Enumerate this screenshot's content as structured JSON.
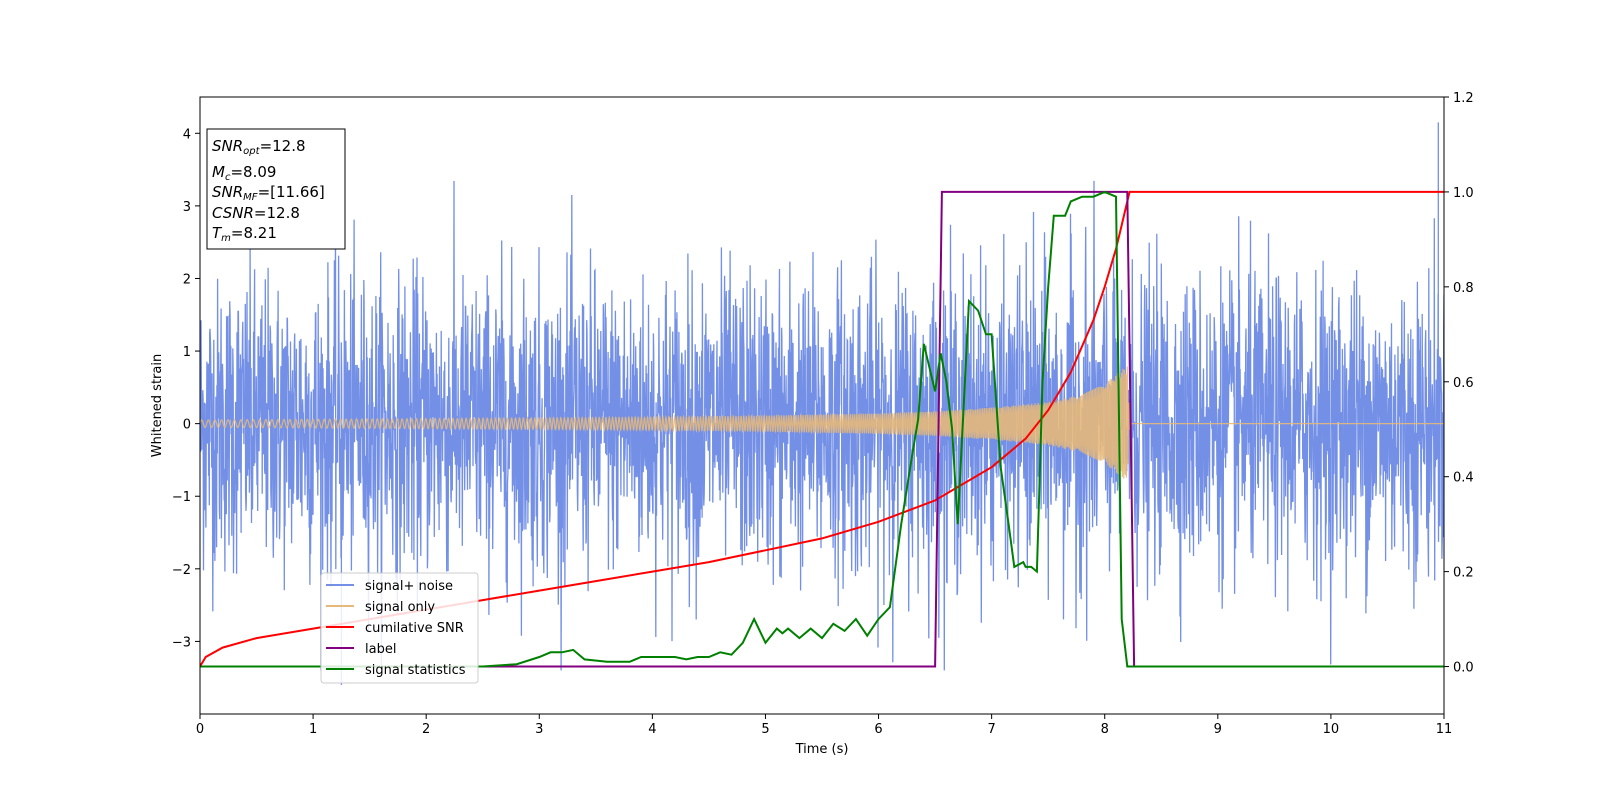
{
  "chart_data": {
    "type": "line",
    "xlabel": "Time (s)",
    "ylabel": "Whitened strain",
    "xlim": [
      0,
      11
    ],
    "ylim_left": [
      -4,
      4.5
    ],
    "ylim_right": [
      -0.1,
      1.2
    ],
    "x_ticks": [
      "0",
      "1",
      "2",
      "3",
      "4",
      "5",
      "6",
      "7",
      "8",
      "9",
      "10",
      "11"
    ],
    "y_left_ticks": [
      "4",
      "3",
      "2",
      "1",
      "0",
      "−1",
      "−2",
      "−3"
    ],
    "y_left_tick_values": [
      4,
      3,
      2,
      1,
      0,
      -1,
      -2,
      -3
    ],
    "y_right_ticks": [
      "1.2",
      "1.0",
      "0.8",
      "0.6",
      "0.4",
      "0.2",
      "0.0"
    ],
    "y_right_tick_values": [
      1.2,
      1.0,
      0.8,
      0.6,
      0.4,
      0.2,
      0.0
    ],
    "grid": false,
    "legend_position": "lower-left",
    "info_box": {
      "snr_opt": {
        "label": "SNR",
        "sub": "opt",
        "value": "=12.8"
      },
      "mc": {
        "label": "M",
        "sub": "c",
        "value": "=8.09"
      },
      "snr_mf": {
        "label": "SNR",
        "sub": "MF",
        "value": "=[11.66]"
      },
      "csnr": {
        "label": "CSNR",
        "value": "=12.8"
      },
      "tm": {
        "label": "T",
        "sub": "m",
        "value": "=8.21"
      }
    },
    "series": [
      {
        "name": "signal+ noise",
        "axis": "left",
        "color": "#7390e6",
        "description_values": {
          "noise_std": 1.0,
          "max_peak_x": 10.95,
          "max_peak_y": 4.15,
          "min_peak_x": 1.25,
          "min_peak_y": -3.6
        }
      },
      {
        "name": "signal only",
        "axis": "left",
        "color": "#e6b87a",
        "envelope": {
          "x": [
            0,
            1,
            2,
            3,
            4,
            5,
            6,
            6.5,
            7,
            7.5,
            7.8,
            8.0,
            8.1,
            8.2,
            8.22,
            11
          ],
          "amp": [
            0.05,
            0.06,
            0.07,
            0.08,
            0.09,
            0.11,
            0.14,
            0.17,
            0.22,
            0.3,
            0.4,
            0.55,
            0.68,
            0.8,
            0,
            0
          ]
        }
      },
      {
        "name": "cumilative SNR",
        "axis": "right",
        "color": "#ff0000",
        "x": [
          0,
          0.05,
          0.2,
          0.5,
          1,
          1.5,
          2,
          2.5,
          3,
          3.5,
          4,
          4.5,
          5,
          5.5,
          6,
          6.5,
          7,
          7.3,
          7.5,
          7.7,
          7.9,
          8.0,
          8.1,
          8.15,
          8.2,
          8.22,
          11
        ],
        "y": [
          0.0,
          0.02,
          0.04,
          0.06,
          0.08,
          0.1,
          0.12,
          0.14,
          0.16,
          0.18,
          0.2,
          0.22,
          0.245,
          0.27,
          0.305,
          0.35,
          0.42,
          0.48,
          0.54,
          0.62,
          0.73,
          0.8,
          0.88,
          0.93,
          0.98,
          1.0,
          1.0
        ]
      },
      {
        "name": "label",
        "axis": "right",
        "color": "#800080",
        "x": [
          0,
          6.5,
          6.56,
          8.2,
          8.26,
          11
        ],
        "y": [
          0,
          0,
          1,
          1,
          0,
          0
        ]
      },
      {
        "name": "signal statistics",
        "axis": "right",
        "color": "#008000",
        "x": [
          0,
          0.5,
          1,
          1.5,
          2,
          2.5,
          2.8,
          3.0,
          3.1,
          3.2,
          3.3,
          3.4,
          3.6,
          3.8,
          3.9,
          4.0,
          4.2,
          4.3,
          4.4,
          4.5,
          4.6,
          4.7,
          4.8,
          4.9,
          5.0,
          5.1,
          5.15,
          5.2,
          5.3,
          5.4,
          5.5,
          5.6,
          5.7,
          5.8,
          5.9,
          6.0,
          6.1,
          6.2,
          6.3,
          6.35,
          6.4,
          6.5,
          6.55,
          6.6,
          6.65,
          6.7,
          6.8,
          6.88,
          6.95,
          7.0,
          7.08,
          7.15,
          7.2,
          7.28,
          7.3,
          7.35,
          7.4,
          7.45,
          7.5,
          7.55,
          7.6,
          7.65,
          7.7,
          7.8,
          7.9,
          8.0,
          8.1,
          8.15,
          8.2,
          8.25,
          8.3,
          9,
          10,
          11
        ],
        "y": [
          0.0,
          0.0,
          0.0,
          0.0,
          0.0,
          0.0,
          0.005,
          0.02,
          0.03,
          0.03,
          0.035,
          0.015,
          0.01,
          0.01,
          0.02,
          0.02,
          0.02,
          0.015,
          0.02,
          0.02,
          0.03,
          0.025,
          0.05,
          0.1,
          0.05,
          0.08,
          0.07,
          0.08,
          0.06,
          0.08,
          0.06,
          0.09,
          0.075,
          0.1,
          0.065,
          0.1,
          0.125,
          0.3,
          0.45,
          0.52,
          0.68,
          0.58,
          0.66,
          0.6,
          0.5,
          0.3,
          0.77,
          0.75,
          0.7,
          0.7,
          0.42,
          0.3,
          0.21,
          0.22,
          0.21,
          0.21,
          0.2,
          0.6,
          0.8,
          0.95,
          0.95,
          0.95,
          0.98,
          0.99,
          0.99,
          1.0,
          0.99,
          0.1,
          0.0,
          0.0,
          0.0,
          0.0,
          0.0,
          0.0
        ]
      }
    ]
  }
}
